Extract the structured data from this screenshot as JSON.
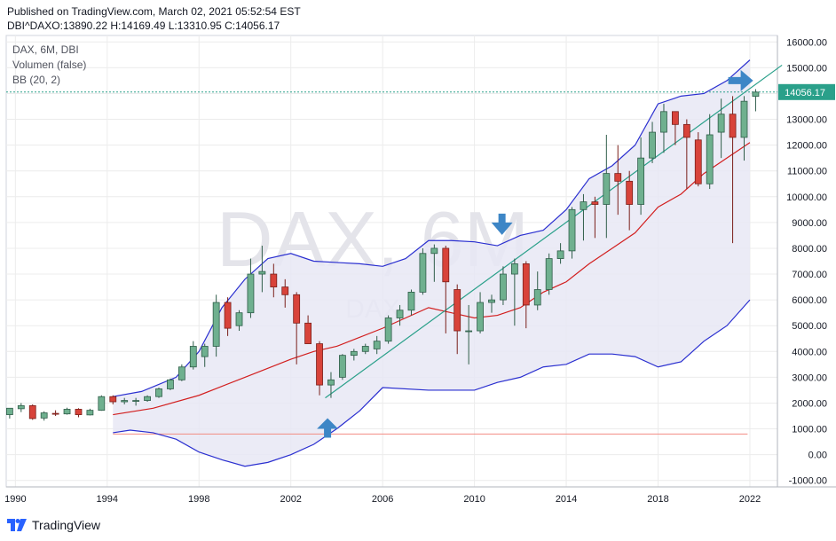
{
  "header": {
    "published": "Published on TradingView.com, March 02, 2021 05:52:54 EST",
    "ohlc": "DBI^DAXO:13890.22 H:14169.49 L:13310.95 C:14056.17"
  },
  "legend": {
    "line1": "DAX, 6M, DBI",
    "line2": "Volumen (false)",
    "line3": "BB (20, 2)"
  },
  "watermark": {
    "main": "DAX, 6M",
    "sub": "DAX"
  },
  "last_price_label": "14056.17",
  "footer": {
    "brand": "TradingView"
  },
  "colors": {
    "up": "#4f9a79",
    "up_fill": "#6fb08f",
    "down": "#d8433a",
    "bb_band": "#2a2fd0",
    "bb_basis": "#d21f1f",
    "bb_fill": "#e8e8f4",
    "trend": "#2aa08a",
    "arrow": "#3d86c6",
    "grid": "#ececec",
    "axis_text": "#131722"
  },
  "chart_data": {
    "type": "candlestick",
    "title": "DAX, 6M, DBI",
    "x_axis": {
      "type": "date",
      "ticks": [
        "1990",
        "1994",
        "1998",
        "2002",
        "2006",
        "2010",
        "2014",
        "2018",
        "2022"
      ],
      "range": [
        1989.6,
        2023.2
      ]
    },
    "y_axis": {
      "ticks": [
        "16000.00",
        "15000.00",
        "14000.00",
        "13000.00",
        "12000.00",
        "11000.00",
        "10000.00",
        "9000.00",
        "8000.00",
        "7000.00",
        "6000.00",
        "5000.00",
        "4000.00",
        "3000.00",
        "2000.00",
        "1000.00",
        "0.00",
        "-1000.00"
      ],
      "range": [
        -1250,
        16250
      ]
    },
    "candles": [
      {
        "t": 1989.75,
        "o": 1550,
        "h": 1800,
        "l": 1400,
        "c": 1800
      },
      {
        "t": 1990.25,
        "o": 1780,
        "h": 2000,
        "l": 1650,
        "c": 1900
      },
      {
        "t": 1990.75,
        "o": 1900,
        "h": 1950,
        "l": 1350,
        "c": 1400
      },
      {
        "t": 1991.25,
        "o": 1420,
        "h": 1680,
        "l": 1320,
        "c": 1620
      },
      {
        "t": 1991.75,
        "o": 1600,
        "h": 1720,
        "l": 1500,
        "c": 1580
      },
      {
        "t": 1992.25,
        "o": 1580,
        "h": 1820,
        "l": 1550,
        "c": 1760
      },
      {
        "t": 1992.75,
        "o": 1760,
        "h": 1800,
        "l": 1450,
        "c": 1550
      },
      {
        "t": 1993.25,
        "o": 1540,
        "h": 1780,
        "l": 1520,
        "c": 1720
      },
      {
        "t": 1993.75,
        "o": 1720,
        "h": 2300,
        "l": 1700,
        "c": 2250
      },
      {
        "t": 1994.25,
        "o": 2250,
        "h": 2300,
        "l": 1950,
        "c": 2050
      },
      {
        "t": 1994.75,
        "o": 2050,
        "h": 2200,
        "l": 1950,
        "c": 2100
      },
      {
        "t": 1995.25,
        "o": 2080,
        "h": 2200,
        "l": 1900,
        "c": 2100
      },
      {
        "t": 1995.75,
        "o": 2100,
        "h": 2300,
        "l": 2050,
        "c": 2250
      },
      {
        "t": 1996.25,
        "o": 2250,
        "h": 2600,
        "l": 2200,
        "c": 2550
      },
      {
        "t": 1996.75,
        "o": 2550,
        "h": 2950,
        "l": 2500,
        "c": 2900
      },
      {
        "t": 1997.25,
        "o": 2900,
        "h": 3500,
        "l": 2850,
        "c": 3400
      },
      {
        "t": 1997.75,
        "o": 3400,
        "h": 4400,
        "l": 3300,
        "c": 4200
      },
      {
        "t": 1998.25,
        "o": 3800,
        "h": 4300,
        "l": 3400,
        "c": 4200
      },
      {
        "t": 1998.75,
        "o": 4200,
        "h": 6200,
        "l": 3800,
        "c": 5900
      },
      {
        "t": 1999.25,
        "o": 5900,
        "h": 6100,
        "l": 4600,
        "c": 4900
      },
      {
        "t": 1999.75,
        "o": 5000,
        "h": 5600,
        "l": 4800,
        "c": 5500
      },
      {
        "t": 2000.25,
        "o": 5500,
        "h": 7600,
        "l": 5300,
        "c": 7000
      },
      {
        "t": 2000.75,
        "o": 7000,
        "h": 8100,
        "l": 6300,
        "c": 7100
      },
      {
        "t": 2001.25,
        "o": 7000,
        "h": 7400,
        "l": 6100,
        "c": 6500
      },
      {
        "t": 2001.75,
        "o": 6500,
        "h": 6800,
        "l": 5700,
        "c": 6200
      },
      {
        "t": 2002.25,
        "o": 6200,
        "h": 6300,
        "l": 3500,
        "c": 5100
      },
      {
        "t": 2002.75,
        "o": 5100,
        "h": 5400,
        "l": 4300,
        "c": 4300
      },
      {
        "t": 2003.25,
        "o": 4300,
        "h": 4400,
        "l": 2300,
        "c": 2700
      },
      {
        "t": 2003.75,
        "o": 2700,
        "h": 3200,
        "l": 2200,
        "c": 2900
      },
      {
        "t": 2004.25,
        "o": 3000,
        "h": 3900,
        "l": 2900,
        "c": 3850
      },
      {
        "t": 2004.75,
        "o": 3850,
        "h": 4100,
        "l": 3650,
        "c": 4000
      },
      {
        "t": 2005.25,
        "o": 4000,
        "h": 4300,
        "l": 3900,
        "c": 4200
      },
      {
        "t": 2005.75,
        "o": 4100,
        "h": 4600,
        "l": 3900,
        "c": 4400
      },
      {
        "t": 2006.25,
        "o": 4400,
        "h": 5400,
        "l": 4300,
        "c": 5300
      },
      {
        "t": 2006.75,
        "o": 5300,
        "h": 5800,
        "l": 5000,
        "c": 5600
      },
      {
        "t": 2007.25,
        "o": 5600,
        "h": 6400,
        "l": 5400,
        "c": 6300
      },
      {
        "t": 2007.75,
        "o": 6300,
        "h": 8000,
        "l": 6200,
        "c": 7800
      },
      {
        "t": 2008.25,
        "o": 7800,
        "h": 8150,
        "l": 6700,
        "c": 8000
      },
      {
        "t": 2008.75,
        "o": 8000,
        "h": 8100,
        "l": 4700,
        "c": 6700
      },
      {
        "t": 2009.25,
        "o": 6400,
        "h": 6600,
        "l": 3900,
        "c": 4800
      },
      {
        "t": 2009.75,
        "o": 4800,
        "h": 5800,
        "l": 3500,
        "c": 4800
      },
      {
        "t": 2010.25,
        "o": 4800,
        "h": 6300,
        "l": 4700,
        "c": 5900
      },
      {
        "t": 2010.75,
        "o": 5900,
        "h": 6200,
        "l": 5500,
        "c": 6000
      },
      {
        "t": 2011.25,
        "o": 6000,
        "h": 7300,
        "l": 5800,
        "c": 7000
      },
      {
        "t": 2011.75,
        "o": 7000,
        "h": 7600,
        "l": 5000,
        "c": 7400
      },
      {
        "t": 2012.25,
        "o": 7400,
        "h": 7500,
        "l": 4900,
        "c": 5800
      },
      {
        "t": 2012.75,
        "o": 5800,
        "h": 7100,
        "l": 5600,
        "c": 6400
      },
      {
        "t": 2013.25,
        "o": 6400,
        "h": 7800,
        "l": 6200,
        "c": 7600
      },
      {
        "t": 2013.75,
        "o": 7600,
        "h": 8200,
        "l": 7400,
        "c": 7900
      },
      {
        "t": 2014.25,
        "o": 7900,
        "h": 9600,
        "l": 7600,
        "c": 9500
      },
      {
        "t": 2014.75,
        "o": 9500,
        "h": 10100,
        "l": 8300,
        "c": 9800
      },
      {
        "t": 2015.25,
        "o": 9800,
        "h": 10000,
        "l": 8400,
        "c": 9700
      },
      {
        "t": 2015.75,
        "o": 9700,
        "h": 12400,
        "l": 8400,
        "c": 10900
      },
      {
        "t": 2016.25,
        "o": 10900,
        "h": 12000,
        "l": 9300,
        "c": 10600
      },
      {
        "t": 2016.75,
        "o": 10600,
        "h": 11000,
        "l": 8700,
        "c": 9700
      },
      {
        "t": 2017.25,
        "o": 9700,
        "h": 12300,
        "l": 9300,
        "c": 11500
      },
      {
        "t": 2017.75,
        "o": 11500,
        "h": 12900,
        "l": 11300,
        "c": 12500
      },
      {
        "t": 2018.25,
        "o": 12500,
        "h": 13600,
        "l": 11700,
        "c": 13300
      },
      {
        "t": 2018.75,
        "o": 13300,
        "h": 13200,
        "l": 12000,
        "c": 12800
      },
      {
        "t": 2019.25,
        "o": 12800,
        "h": 13000,
        "l": 10300,
        "c": 12300
      },
      {
        "t": 2019.75,
        "o": 12200,
        "h": 12500,
        "l": 10400,
        "c": 10500
      },
      {
        "t": 2020.25,
        "o": 10500,
        "h": 13200,
        "l": 10300,
        "c": 12400
      },
      {
        "t": 2020.75,
        "o": 12500,
        "h": 13800,
        "l": 11500,
        "c": 13200
      },
      {
        "t": 2021.25,
        "o": 13200,
        "h": 13900,
        "l": 8200,
        "c": 12300
      },
      {
        "t": 2021.75,
        "o": 12300,
        "h": 13900,
        "l": 11400,
        "c": 13700
      },
      {
        "t": 2022.25,
        "o": 13890,
        "h": 14169,
        "l": 13311,
        "c": 14056
      }
    ],
    "bb_upper": [
      [
        1994.25,
        2250
      ],
      [
        1995.5,
        2450
      ],
      [
        1997,
        3000
      ],
      [
        1998,
        4000
      ],
      [
        1999,
        5700
      ],
      [
        2000,
        6800
      ],
      [
        2001,
        7600
      ],
      [
        2002,
        7800
      ],
      [
        2003,
        7500
      ],
      [
        2004,
        7450
      ],
      [
        2005,
        7400
      ],
      [
        2006,
        7300
      ],
      [
        2007,
        7600
      ],
      [
        2008,
        8300
      ],
      [
        2009,
        8300
      ],
      [
        2010,
        8250
      ],
      [
        2011,
        8100
      ],
      [
        2012,
        8500
      ],
      [
        2013,
        8700
      ],
      [
        2014,
        9500
      ],
      [
        2015,
        10700
      ],
      [
        2016,
        11200
      ],
      [
        2017,
        12000
      ],
      [
        2018,
        13600
      ],
      [
        2019,
        13900
      ],
      [
        2020,
        14000
      ],
      [
        2021,
        14500
      ],
      [
        2022,
        15300
      ]
    ],
    "bb_basis": [
      [
        1994.25,
        1550
      ],
      [
        1996,
        1800
      ],
      [
        1998,
        2300
      ],
      [
        2000,
        3000
      ],
      [
        2002,
        3700
      ],
      [
        2003,
        4000
      ],
      [
        2004,
        4200
      ],
      [
        2006,
        4900
      ],
      [
        2008,
        5700
      ],
      [
        2009,
        5500
      ],
      [
        2010,
        5300
      ],
      [
        2011,
        5400
      ],
      [
        2012,
        5700
      ],
      [
        2013,
        6300
      ],
      [
        2014,
        6700
      ],
      [
        2015,
        7400
      ],
      [
        2016,
        8000
      ],
      [
        2017,
        8600
      ],
      [
        2018,
        9600
      ],
      [
        2019,
        10100
      ],
      [
        2020,
        10900
      ],
      [
        2021,
        11500
      ],
      [
        2022,
        12100
      ]
    ],
    "bb_lower": [
      [
        1994.25,
        850
      ],
      [
        1995,
        950
      ],
      [
        1996,
        850
      ],
      [
        1997,
        600
      ],
      [
        1998,
        100
      ],
      [
        1999,
        -200
      ],
      [
        2000,
        -450
      ],
      [
        2001,
        -300
      ],
      [
        2002,
        0
      ],
      [
        2003,
        400
      ],
      [
        2004,
        1000
      ],
      [
        2005,
        1700
      ],
      [
        2006,
        2600
      ],
      [
        2008,
        2500
      ],
      [
        2010,
        2500
      ],
      [
        2011,
        2800
      ],
      [
        2012,
        3000
      ],
      [
        2013,
        3400
      ],
      [
        2014,
        3500
      ],
      [
        2015,
        3900
      ],
      [
        2016,
        3900
      ],
      [
        2017,
        3800
      ],
      [
        2018,
        3400
      ],
      [
        2019,
        3600
      ],
      [
        2020,
        4400
      ],
      [
        2021,
        5000
      ],
      [
        2022,
        6000
      ]
    ],
    "trendline": [
      [
        2003.5,
        2200
      ],
      [
        2023.4,
        15100
      ]
    ],
    "last_price": 14056.17,
    "h_lines": [
      {
        "y": 14056.17,
        "color": "#2aa08a"
      },
      {
        "y": 800,
        "color": "#f28c82"
      }
    ],
    "arrows": [
      {
        "t": 2003.6,
        "y": 1000,
        "dir": "up"
      },
      {
        "t": 2011.2,
        "y": 9000,
        "dir": "down"
      },
      {
        "t": 2021.6,
        "y": 14500,
        "dir": "right"
      }
    ]
  }
}
